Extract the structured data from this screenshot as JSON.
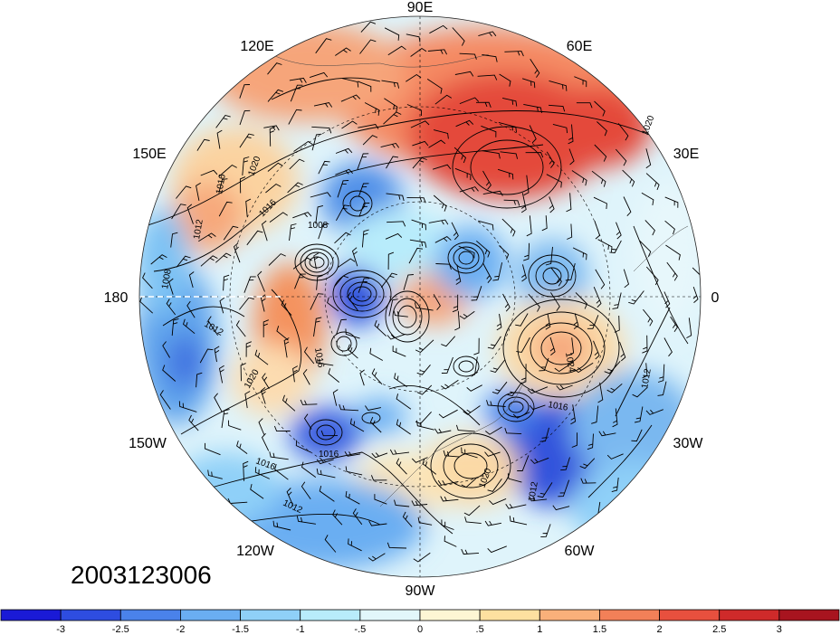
{
  "map": {
    "projection": "north-polar-stereographic",
    "longitude_labels": [
      {
        "id": "lon-90e",
        "text": "90E"
      },
      {
        "id": "lon-60e",
        "text": "60E"
      },
      {
        "id": "lon-30e",
        "text": "30E"
      },
      {
        "id": "lon-0",
        "text": "0"
      },
      {
        "id": "lon-30w",
        "text": "30W"
      },
      {
        "id": "lon-60w",
        "text": "60W"
      },
      {
        "id": "lon-90w",
        "text": "90W"
      },
      {
        "id": "lon-120w",
        "text": "120W"
      },
      {
        "id": "lon-150w",
        "text": "150W"
      },
      {
        "id": "lon-180",
        "text": "180"
      },
      {
        "id": "lon-150e",
        "text": "150E"
      },
      {
        "id": "lon-120e",
        "text": "120E"
      }
    ],
    "contour_labels": [
      "1012",
      "1016",
      "1020",
      "1008",
      "1016",
      "1012",
      "1020",
      "1024",
      "1016",
      "1016",
      "1012",
      "1020",
      "1016",
      "1012",
      "1008",
      "1016",
      "1020",
      "1012"
    ],
    "contour_interval_hint": "sea-level pressure (hPa) isobars with wind barbs over shaded anomaly"
  },
  "timestamp": "2003123006",
  "colorbar": {
    "colors": [
      "#1a1ad6",
      "#2e4de0",
      "#4a82ea",
      "#6aaef2",
      "#8fd0f8",
      "#b8ecfb",
      "#e2f7fb",
      "#fdf6d4",
      "#fde0a0",
      "#f9b07a",
      "#f28058",
      "#e8503e",
      "#cf2a2a",
      "#a8141f"
    ],
    "tick_labels": [
      "-3",
      "-2.5",
      "-2",
      "-1.5",
      "-1",
      "-.5",
      "0",
      ".5",
      "1",
      "1.5",
      "2",
      "2.5",
      "3"
    ]
  }
}
